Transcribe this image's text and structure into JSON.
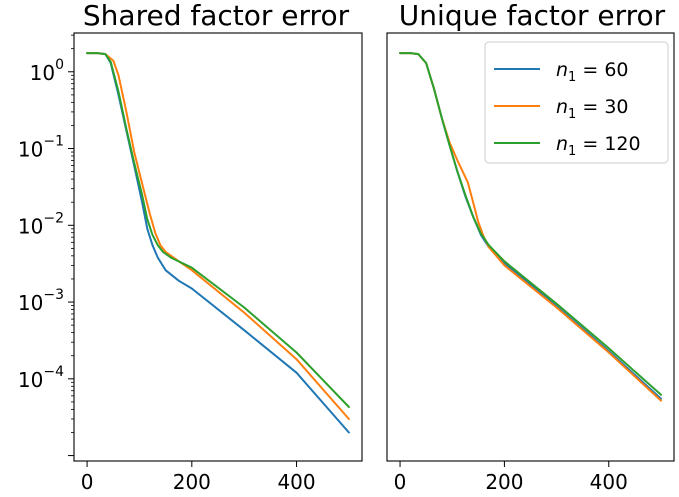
{
  "chart_data": [
    {
      "type": "line",
      "title": "Shared factor error",
      "xlabel": "",
      "ylabel": "",
      "yscale": "log",
      "xlim": [
        -25,
        525
      ],
      "ylim": [
        8.5e-06,
        3.2
      ],
      "xticks": [
        0,
        200,
        400
      ],
      "xtick_labels": [
        "0",
        "200",
        "400"
      ],
      "yticks": [
        1,
        0.1,
        0.01,
        0.001,
        0.0001
      ],
      "ytick_labels": [
        {
          "base": "10",
          "exp": "0"
        },
        {
          "base": "10",
          "exp": "−1"
        },
        {
          "base": "10",
          "exp": "−2"
        },
        {
          "base": "10",
          "exp": "−3"
        },
        {
          "base": "10",
          "exp": "−4"
        }
      ],
      "grid": false,
      "series": [
        {
          "legend_index": 0,
          "color": "#1f77b4",
          "x": [
            0,
            20,
            35,
            45,
            60,
            75,
            90,
            105,
            115,
            125,
            135,
            150,
            175,
            200,
            300,
            400,
            500
          ],
          "y": [
            1.75,
            1.75,
            1.7,
            1.3,
            0.5,
            0.17,
            0.06,
            0.02,
            0.009,
            0.0055,
            0.0038,
            0.0026,
            0.0019,
            0.0015,
            0.00043,
            0.00012,
            2e-05
          ]
        },
        {
          "legend_index": 1,
          "color": "#ff7f0e",
          "x": [
            0,
            20,
            35,
            50,
            60,
            75,
            90,
            105,
            120,
            130,
            140,
            150,
            170,
            200,
            300,
            400,
            500
          ],
          "y": [
            1.75,
            1.75,
            1.7,
            1.4,
            0.9,
            0.3,
            0.09,
            0.035,
            0.014,
            0.008,
            0.0055,
            0.0045,
            0.0036,
            0.0026,
            0.00073,
            0.00018,
            3e-05
          ]
        },
        {
          "legend_index": 2,
          "color": "#2ca02c",
          "x": [
            0,
            20,
            35,
            45,
            60,
            75,
            90,
            105,
            115,
            125,
            135,
            145,
            160,
            200,
            300,
            400,
            500
          ],
          "y": [
            1.75,
            1.75,
            1.7,
            1.35,
            0.55,
            0.18,
            0.065,
            0.025,
            0.012,
            0.0075,
            0.0055,
            0.0045,
            0.0038,
            0.0028,
            0.00085,
            0.00022,
            4.3e-05
          ]
        }
      ]
    },
    {
      "type": "line",
      "title": "Unique factor error",
      "xlabel": "",
      "ylabel": "",
      "yscale": "log",
      "xlim": [
        -25,
        525
      ],
      "ylim": [
        8.5e-06,
        3.2
      ],
      "xticks": [
        0,
        200,
        400
      ],
      "xtick_labels": [
        "0",
        "200",
        "400"
      ],
      "grid": false,
      "legend": {
        "location": "upper right",
        "entries": [
          {
            "sub": "1",
            "value": "60",
            "color": "#1f77b4"
          },
          {
            "sub": "1",
            "value": "30",
            "color": "#ff7f0e"
          },
          {
            "sub": "1",
            "value": "120",
            "color": "#2ca02c"
          }
        ]
      },
      "series": [
        {
          "legend_index": 0,
          "color": "#1f77b4",
          "x": [
            0,
            20,
            35,
            50,
            65,
            80,
            95,
            110,
            125,
            140,
            155,
            170,
            200,
            300,
            400,
            500
          ],
          "y": [
            1.75,
            1.75,
            1.7,
            1.3,
            0.6,
            0.25,
            0.11,
            0.05,
            0.024,
            0.013,
            0.0075,
            0.0052,
            0.0032,
            0.00088,
            0.00023,
            5.5e-05
          ]
        },
        {
          "legend_index": 1,
          "color": "#ff7f0e",
          "x": [
            0,
            20,
            35,
            50,
            65,
            80,
            95,
            110,
            120,
            130,
            140,
            150,
            160,
            170,
            200,
            300,
            400,
            500
          ],
          "y": [
            1.75,
            1.75,
            1.7,
            1.3,
            0.6,
            0.25,
            0.12,
            0.07,
            0.05,
            0.036,
            0.02,
            0.011,
            0.0072,
            0.0052,
            0.003,
            0.00085,
            0.00022,
            5.2e-05
          ]
        },
        {
          "legend_index": 2,
          "color": "#2ca02c",
          "x": [
            0,
            20,
            35,
            50,
            65,
            80,
            95,
            110,
            125,
            140,
            155,
            170,
            200,
            300,
            400,
            500
          ],
          "y": [
            1.75,
            1.75,
            1.7,
            1.3,
            0.6,
            0.25,
            0.11,
            0.05,
            0.025,
            0.013,
            0.0078,
            0.0055,
            0.0034,
            0.00095,
            0.00025,
            6.2e-05
          ]
        }
      ]
    }
  ]
}
